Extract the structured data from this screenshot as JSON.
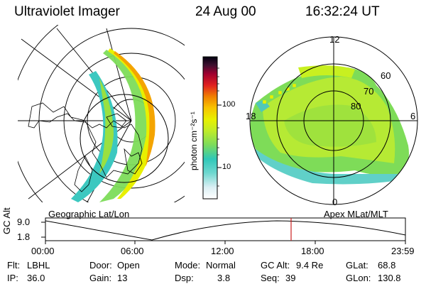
{
  "header": {
    "instrument": "Ultraviolet Imager",
    "date": "24 Aug 00",
    "time": "16:32:24 UT"
  },
  "colorbar": {
    "unit_label": "photon cm⁻²s⁻¹",
    "ticks": [
      "100",
      "10"
    ],
    "colors": [
      "#ffffff",
      "#e0f0f8",
      "#60d8d0",
      "#20c8c0",
      "#80e060",
      "#c8f020",
      "#e8f000",
      "#f8c000",
      "#f08000",
      "#e02000",
      "#a00020",
      "#401030",
      "#000010"
    ]
  },
  "left_panel": {
    "caption": "Geographic Lat/Lon"
  },
  "right_panel": {
    "caption": "Apex MLat/MLT",
    "mlt_labels": [
      "12",
      "18",
      "6",
      "0"
    ],
    "mlat_labels": [
      "60",
      "70",
      "80"
    ]
  },
  "timeline": {
    "axis_title": "GC Alt",
    "y_ticks": [
      "9.0",
      "1.8"
    ],
    "x_ticks": [
      "00:00",
      "06:00",
      "12:00",
      "18:00",
      "23:59"
    ],
    "marker_color": "#cc2020"
  },
  "info": {
    "filter_label": "Flt:",
    "filter_value": "LBHL",
    "ip_label": "IP:",
    "ip_value": "36.0",
    "door_label": "Door:",
    "door_value": "Open",
    "gain_label": "Gain:",
    "gain_value": "13",
    "mode_label": "Mode:",
    "mode_value": "Normal",
    "dsp_label": "Dsp:",
    "dsp_value": "3.8",
    "gcalt_label": "GC Alt:",
    "gcalt_value": "9.4 Re",
    "seq_label": "Seq:",
    "seq_value": "39",
    "glat_label": "GLat:",
    "glat_value": "68.8",
    "glon_label": "GLon:",
    "glon_value": "130.8"
  }
}
